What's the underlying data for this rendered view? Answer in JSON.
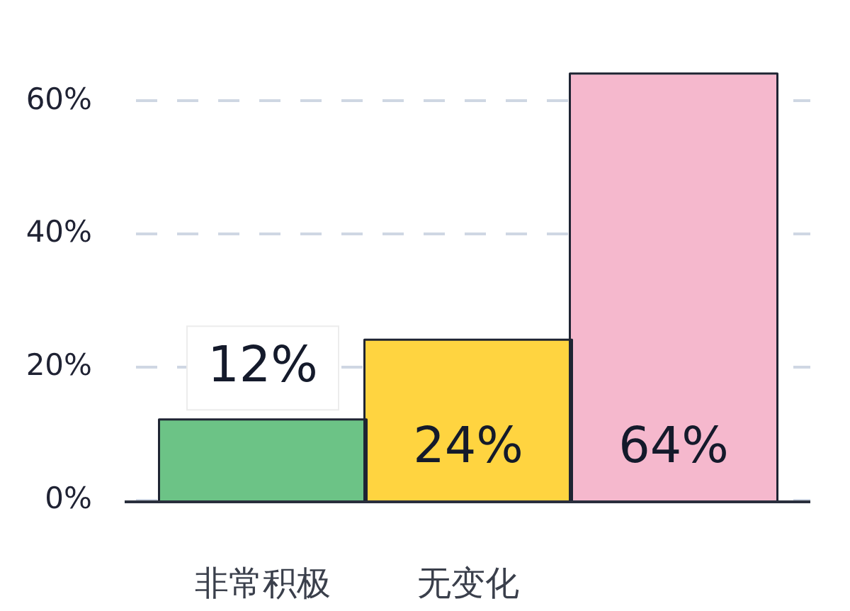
{
  "chart_data": {
    "type": "bar",
    "categories": [
      "非常积极",
      "无变化",
      null
    ],
    "values": [
      12,
      24,
      64
    ],
    "colors": [
      "#6cc386",
      "#ffd440",
      "#f5b8cd"
    ],
    "value_labels": [
      "12%",
      "24%",
      "64%"
    ],
    "ylim": [
      0,
      64
    ],
    "yticks": [
      {
        "value": 0,
        "label": "0%"
      },
      {
        "value": 20,
        "label": "20%"
      },
      {
        "value": 40,
        "label": "40%"
      },
      {
        "value": 60,
        "label": "60%"
      }
    ],
    "grid": "y"
  }
}
